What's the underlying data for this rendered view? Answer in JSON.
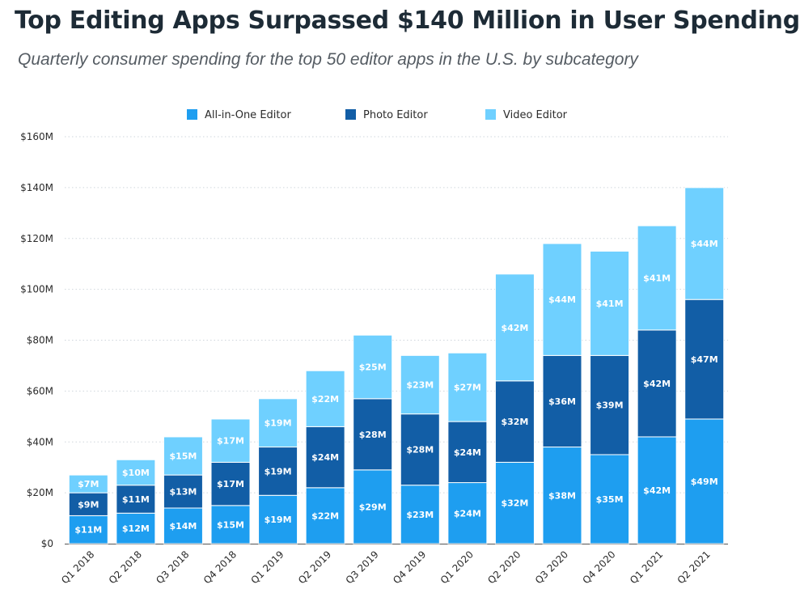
{
  "title": "Top Editing Apps Surpassed $140 Million in User Spending",
  "subtitle": "Quarterly consumer spending for the top 50 editor apps in the U.S. by subcategory",
  "colors": {
    "all_in_one": "#1e9ef0",
    "photo": "#125ea6",
    "video": "#6fd0ff",
    "grid": "#cfd6dc",
    "axis": "#555555"
  },
  "chart_data": {
    "type": "bar",
    "stacked": true,
    "categories": [
      "Q1 2018",
      "Q2 2018",
      "Q3 2018",
      "Q4 2018",
      "Q1 2019",
      "Q2 2019",
      "Q3 2019",
      "Q4 2019",
      "Q1 2020",
      "Q2 2020",
      "Q3 2020",
      "Q4 2020",
      "Q1 2021",
      "Q2 2021"
    ],
    "series": [
      {
        "name": "All-in-One Editor",
        "values": [
          11,
          12,
          14,
          15,
          19,
          22,
          29,
          23,
          24,
          32,
          38,
          35,
          42,
          49
        ],
        "labels": [
          "$11M",
          "$12M",
          "$14M",
          "$15M",
          "$19M",
          "$22M",
          "$29M",
          "$23M",
          "$24M",
          "$32M",
          "$38M",
          "$35M",
          "$42M",
          "$49M"
        ]
      },
      {
        "name": "Photo Editor",
        "values": [
          9,
          11,
          13,
          17,
          19,
          24,
          28,
          28,
          24,
          32,
          36,
          39,
          42,
          47
        ],
        "labels": [
          "$9M",
          "$11M",
          "$13M",
          "$17M",
          "$19M",
          "$24M",
          "$28M",
          "$28M",
          "$24M",
          "$32M",
          "$36M",
          "$39M",
          "$42M",
          "$47M"
        ]
      },
      {
        "name": "Video Editor",
        "values": [
          7,
          10,
          15,
          17,
          19,
          22,
          25,
          23,
          27,
          42,
          44,
          41,
          41,
          44
        ],
        "labels": [
          "$7M",
          "$10M",
          "$15M",
          "$17M",
          "$19M",
          "$22M",
          "$25M",
          "$23M",
          "$27M",
          "$42M",
          "$44M",
          "$41M",
          "$41M",
          "$44M"
        ]
      }
    ],
    "ylim": [
      0,
      160
    ],
    "yticks": [
      0,
      20,
      40,
      60,
      80,
      100,
      120,
      140,
      160
    ],
    "ytick_labels": [
      "$0",
      "$20M",
      "$40M",
      "$60M",
      "$80M",
      "$100M",
      "$120M",
      "$140M",
      "$160M"
    ],
    "xlabel": "",
    "ylabel": "",
    "grid": "horizontal dotted",
    "legend_position": "top"
  }
}
